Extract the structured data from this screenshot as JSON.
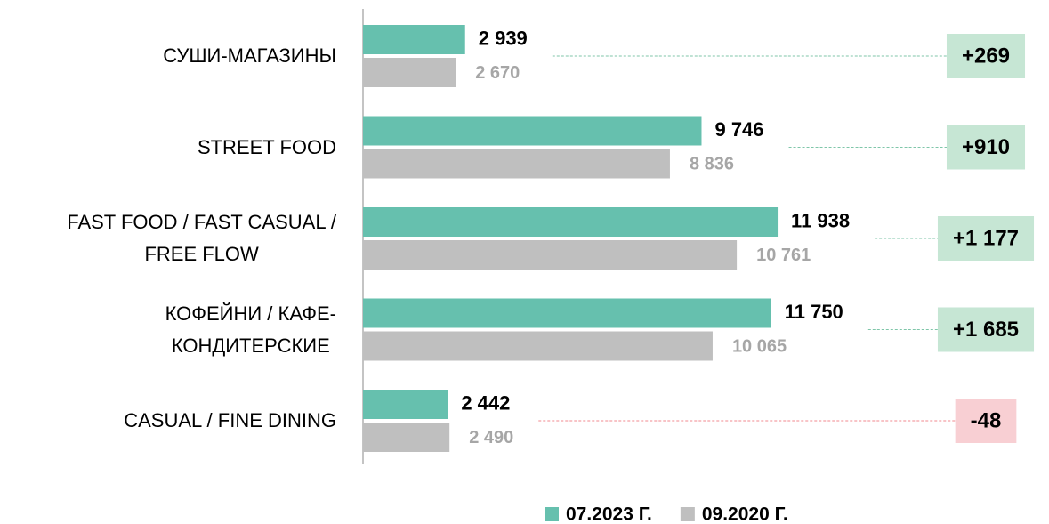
{
  "chart_data": {
    "type": "bar",
    "orientation": "horizontal",
    "categories": [
      [
        "СУШИ-МАГАЗИНЫ"
      ],
      [
        "STREET FOOD"
      ],
      [
        "FAST FOOD / FAST CASUAL /",
        "FREE FLOW"
      ],
      [
        "КОФЕЙНИ / КАФЕ-",
        "КОНДИТЕРСКИЕ"
      ],
      [
        "CASUAL / FINE DINING"
      ]
    ],
    "series": [
      {
        "name": "07.2023 Г.",
        "color": "#66c0ae",
        "label_color": "#000000",
        "values": [
          2939,
          9746,
          11938,
          11750,
          2442
        ],
        "value_labels": [
          "2 939",
          "9 746",
          "11 938",
          "11 750",
          "2 442"
        ]
      },
      {
        "name": "09.2020 Г.",
        "color": "#bfbfbf",
        "label_color": "#a6a6a6",
        "values": [
          2670,
          8836,
          10761,
          10065,
          2490
        ],
        "value_labels": [
          "2 670",
          "8 836",
          "10 761",
          "10 065",
          "2 490"
        ]
      }
    ],
    "differences": {
      "values": [
        269,
        910,
        1177,
        1685,
        -48
      ],
      "value_labels": [
        "+269",
        "+910",
        "+1 177",
        "+1 685",
        "-48"
      ],
      "positive_color": "#c6e6d4",
      "negative_color": "#f8cfd3",
      "positive_line_color": "#7fc6a9",
      "negative_line_color": "#f08a8f"
    },
    "xlim": [
      0,
      15000
    ],
    "legend": "bottom"
  }
}
